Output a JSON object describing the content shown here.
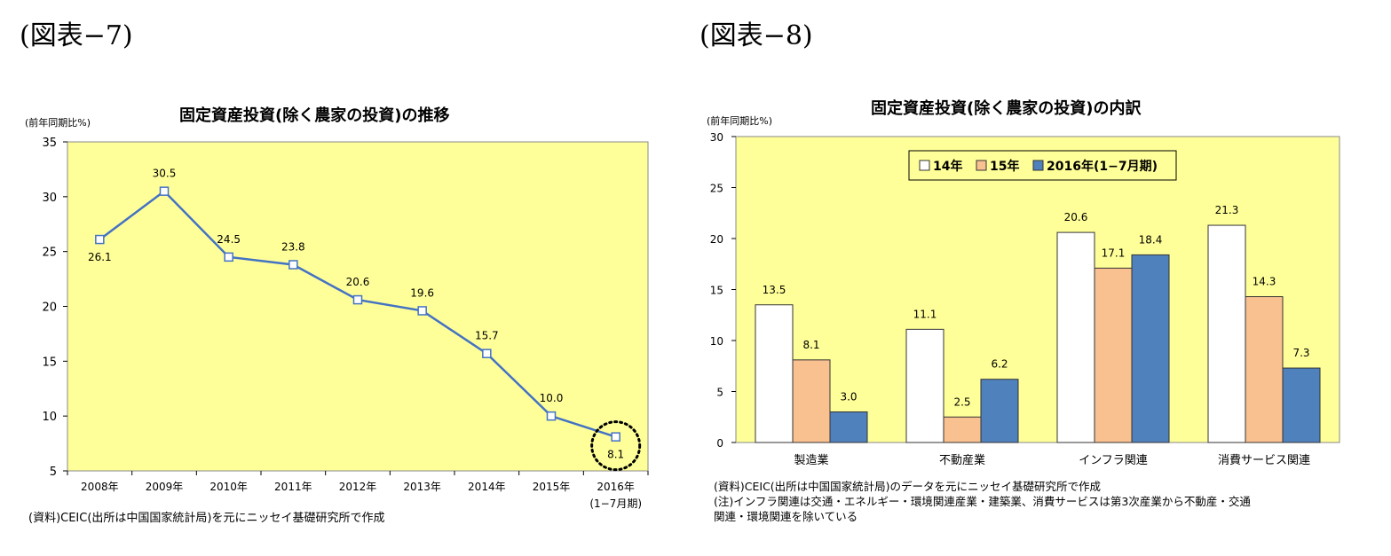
{
  "figures": [
    {
      "label": "(図表−7)",
      "title": "固定資産投資(除く農家の投資)の推移",
      "unit": "(前年同期比%)",
      "source": "(資料)CEIC(出所は中国国家統計局)を元にニッセイ基礎研究所で作成"
    },
    {
      "label": "(図表−8)",
      "title": "固定資産投資(除く農家の投資)の内訳",
      "unit": "(前年同期比%)",
      "source": "(資料)CEIC(出所は中国国家統計局)のデータを元にニッセイ基礎研究所で作成",
      "note_line1": "(注)インフラ関連は交通・エネルギー・環境関連産業・建築業、消費サービスは第3次産業から不動産・交通",
      "note_line2": "関連・環境関連を除いている"
    }
  ],
  "colors": {
    "plot_bg": "#ffff99",
    "line": "#4472c4",
    "bar_14": "#ffffff",
    "bar_15": "#f9c090",
    "bar_2016": "#4f81bd"
  },
  "chart_data": [
    {
      "type": "line",
      "title": "固定資産投資(除く農家の投資)の推移",
      "ylabel": "(前年同期比%)",
      "categories": [
        "2008年",
        "2009年",
        "2010年",
        "2011年",
        "2012年",
        "2013年",
        "2014年",
        "2015年",
        "2016年"
      ],
      "category_sublabels": [
        "",
        "",
        "",
        "",
        "",
        "",
        "",
        "",
        "(1−7月期)"
      ],
      "values": [
        26.1,
        30.5,
        24.5,
        23.8,
        20.6,
        19.6,
        15.7,
        10.0,
        8.1
      ],
      "value_labels": [
        "26.1",
        "30.5",
        "24.5",
        "23.8",
        "20.6",
        "19.6",
        "15.7",
        "10.0",
        "8.1"
      ],
      "ylim": [
        5,
        35
      ],
      "yticks": [
        5,
        10,
        15,
        20,
        25,
        30,
        35
      ],
      "highlight": "dotted circle around last point"
    },
    {
      "type": "bar",
      "title": "固定資産投資(除く農家の投資)の内訳",
      "ylabel": "(前年同期比%)",
      "categories": [
        "製造業",
        "不動産業",
        "インフラ関連",
        "消費サービス関連"
      ],
      "series": [
        {
          "name": "14年",
          "values": [
            13.5,
            11.1,
            20.6,
            21.3
          ]
        },
        {
          "name": "15年",
          "values": [
            8.1,
            2.5,
            17.1,
            14.3
          ]
        },
        {
          "name": "2016年(1−7月期)",
          "values": [
            3.0,
            6.2,
            18.4,
            7.3
          ]
        }
      ],
      "ylim": [
        0,
        30
      ],
      "yticks": [
        0,
        5,
        10,
        15,
        20,
        25,
        30
      ],
      "legend": "top-center"
    }
  ]
}
